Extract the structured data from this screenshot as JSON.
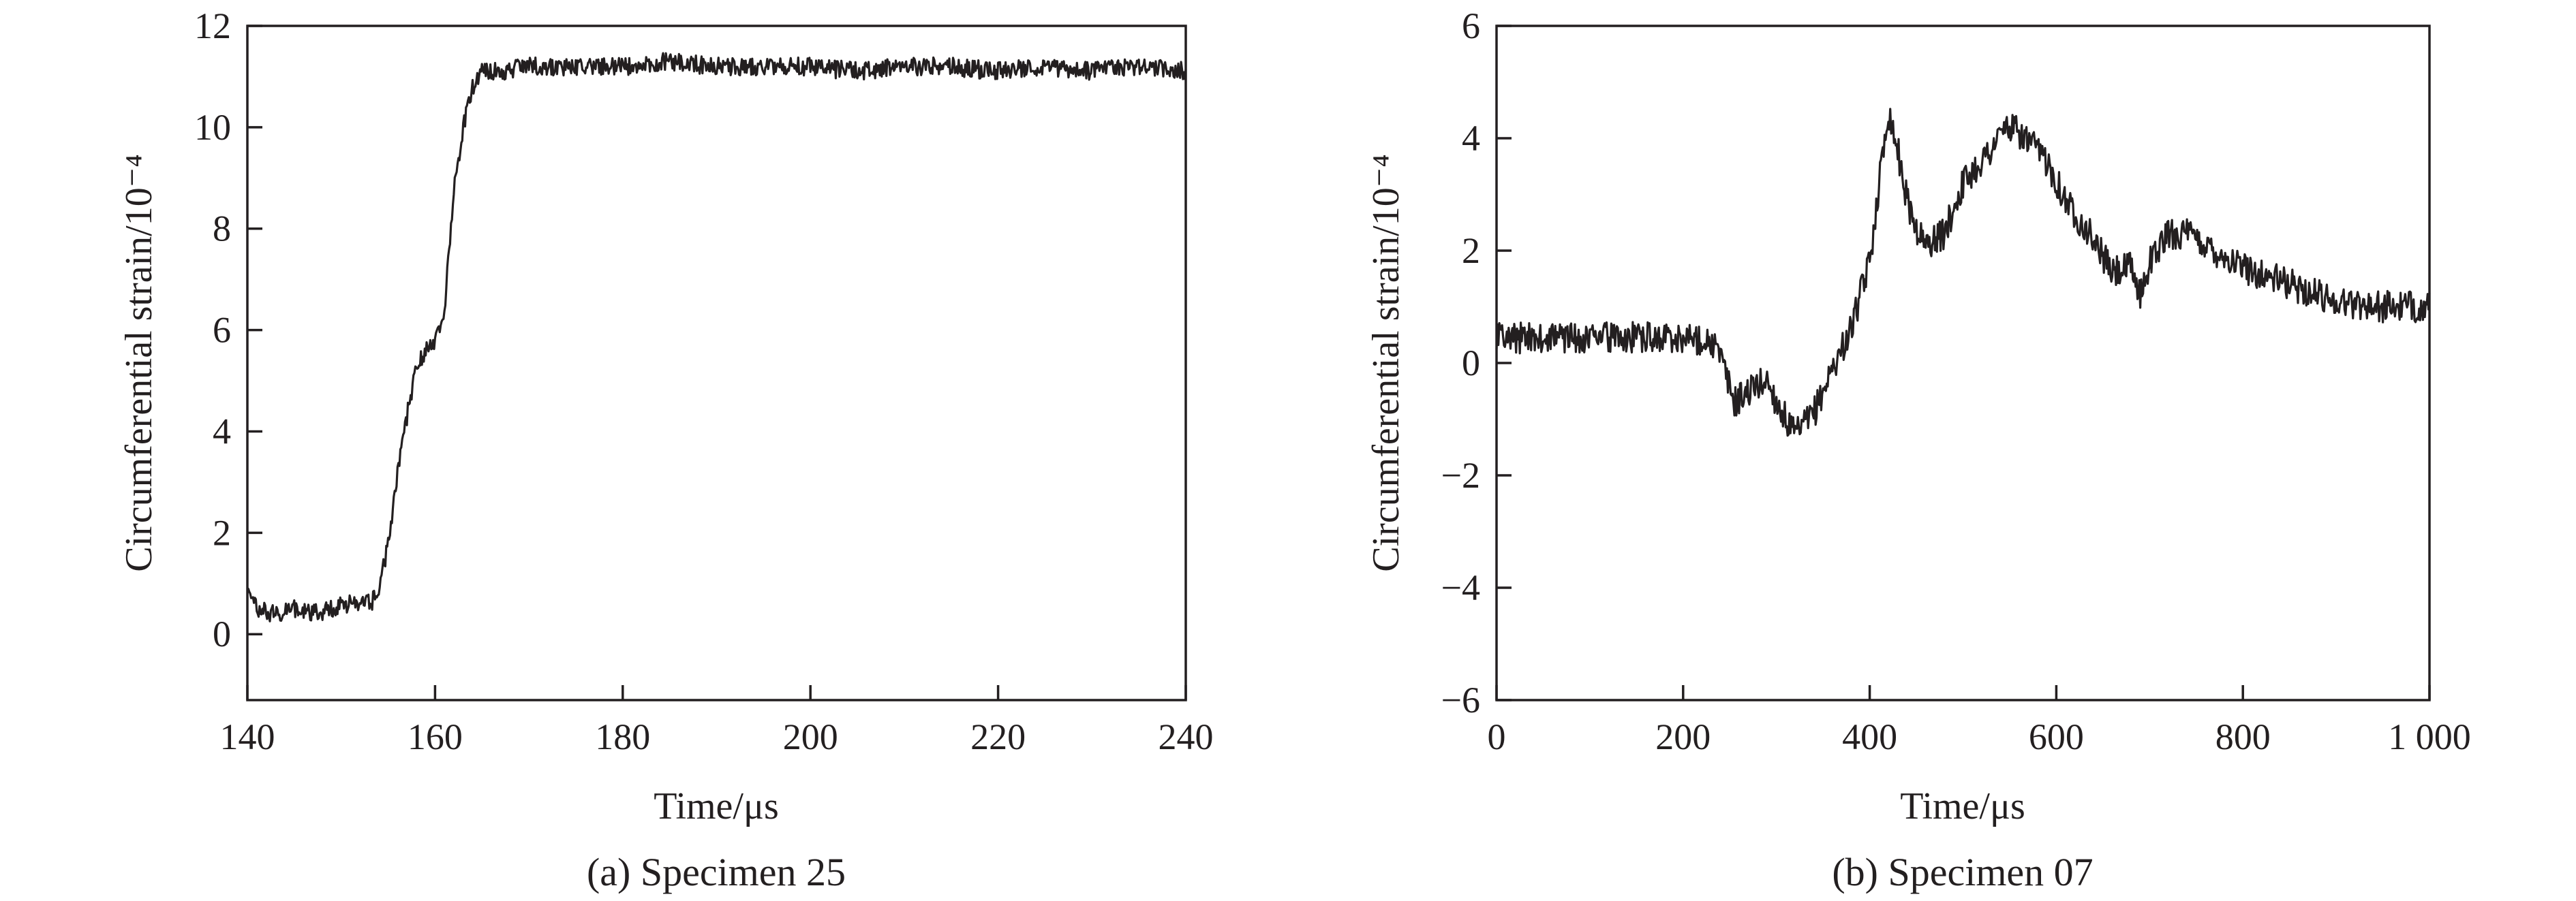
{
  "chart_data": [
    {
      "type": "line",
      "caption": "(a) Specimen 25",
      "xlabel": "Time/μs",
      "ylabel": "Circumferential strain/10⁻⁴",
      "xlim": [
        140,
        240
      ],
      "ylim": [
        -1.3,
        12
      ],
      "x_ticks": [
        140,
        160,
        180,
        200,
        220,
        240
      ],
      "x_tick_labels": [
        "140",
        "160",
        "180",
        "200",
        "220",
        "240"
      ],
      "y_ticks": [
        0,
        2,
        4,
        6,
        8,
        10,
        12
      ],
      "y_tick_labels": [
        "0",
        "2",
        "4",
        "6",
        "8",
        "10",
        "12"
      ],
      "noise": 0.18,
      "series": [
        {
          "x": [
            140,
            141,
            143,
            145,
            147,
            149,
            151,
            153,
            154,
            155,
            156,
            157,
            158,
            159,
            160,
            161,
            162,
            163,
            164,
            165,
            167,
            170,
            175,
            180,
            185,
            190,
            195,
            200,
            205,
            210,
            215,
            220,
            225,
            230,
            235,
            240
          ],
          "y": [
            0.9,
            0.5,
            0.4,
            0.5,
            0.4,
            0.5,
            0.6,
            0.6,
            0.8,
            1.8,
            3.2,
            4.3,
            5.3,
            5.6,
            5.7,
            6.4,
            8.8,
            10.0,
            10.8,
            11.1,
            11.1,
            11.2,
            11.2,
            11.2,
            11.3,
            11.2,
            11.2,
            11.2,
            11.1,
            11.2,
            11.2,
            11.1,
            11.2,
            11.1,
            11.2,
            11.1
          ]
        }
      ]
    },
    {
      "type": "line",
      "caption": "(b) Specimen 07",
      "xlabel": "Time/μs",
      "ylabel": "Circumferential strain/10⁻⁴",
      "xlim": [
        0,
        1000
      ],
      "ylim": [
        -6,
        6
      ],
      "x_ticks": [
        0,
        200,
        400,
        600,
        800,
        1000
      ],
      "x_tick_labels": [
        "0",
        "200",
        "400",
        "600",
        "800",
        "1 000"
      ],
      "y_ticks": [
        -6,
        -4,
        -2,
        0,
        2,
        4,
        6
      ],
      "y_tick_labels": [
        "−6",
        "−4",
        "−2",
        "0",
        "2",
        "4",
        "6"
      ],
      "noise": 0.28,
      "series": [
        {
          "x": [
            0,
            50,
            100,
            150,
            200,
            230,
            240,
            255,
            270,
            290,
            300,
            320,
            340,
            360,
            380,
            400,
            410,
            420,
            430,
            440,
            450,
            460,
            470,
            480,
            500,
            530,
            545,
            560,
            590,
            610,
            640,
            660,
            680,
            690,
            700,
            720,
            740,
            760,
            800,
            850,
            900,
            950,
            1000
          ],
          "y": [
            0.45,
            0.45,
            0.45,
            0.45,
            0.45,
            0.4,
            0.1,
            -0.7,
            -0.5,
            -0.3,
            -0.7,
            -1.3,
            -0.9,
            -0.1,
            0.6,
            1.8,
            3.2,
            4.5,
            3.8,
            2.9,
            2.4,
            2.1,
            2.2,
            2.3,
            3.2,
            3.8,
            4.2,
            4.1,
            3.6,
            2.9,
            2.2,
            1.6,
            1.7,
            1.2,
            1.8,
            2.3,
            2.3,
            2.1,
            1.7,
            1.4,
            1.1,
            1.0,
            1.0
          ]
        }
      ]
    }
  ]
}
